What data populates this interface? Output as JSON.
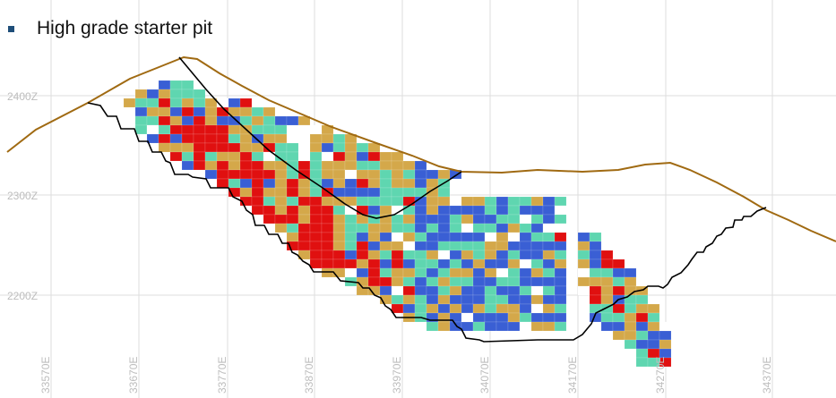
{
  "bullet": {
    "text": "High grade starter pit"
  },
  "axes": {
    "z_labels": [
      "2400Z",
      "2300Z",
      "2200Z"
    ],
    "e_labels": [
      "33570E",
      "33670E",
      "33770E",
      "33870E",
      "33970E",
      "34070E",
      "34170E",
      "34270E",
      "34370E"
    ]
  },
  "legend_colors": {
    "very_high": "#e01010",
    "high": "#d4a84a",
    "medium": "#5fd6b0",
    "low": "#3a5fd4",
    "topography": "#a06a12",
    "pit_shell": "#000000"
  }
}
